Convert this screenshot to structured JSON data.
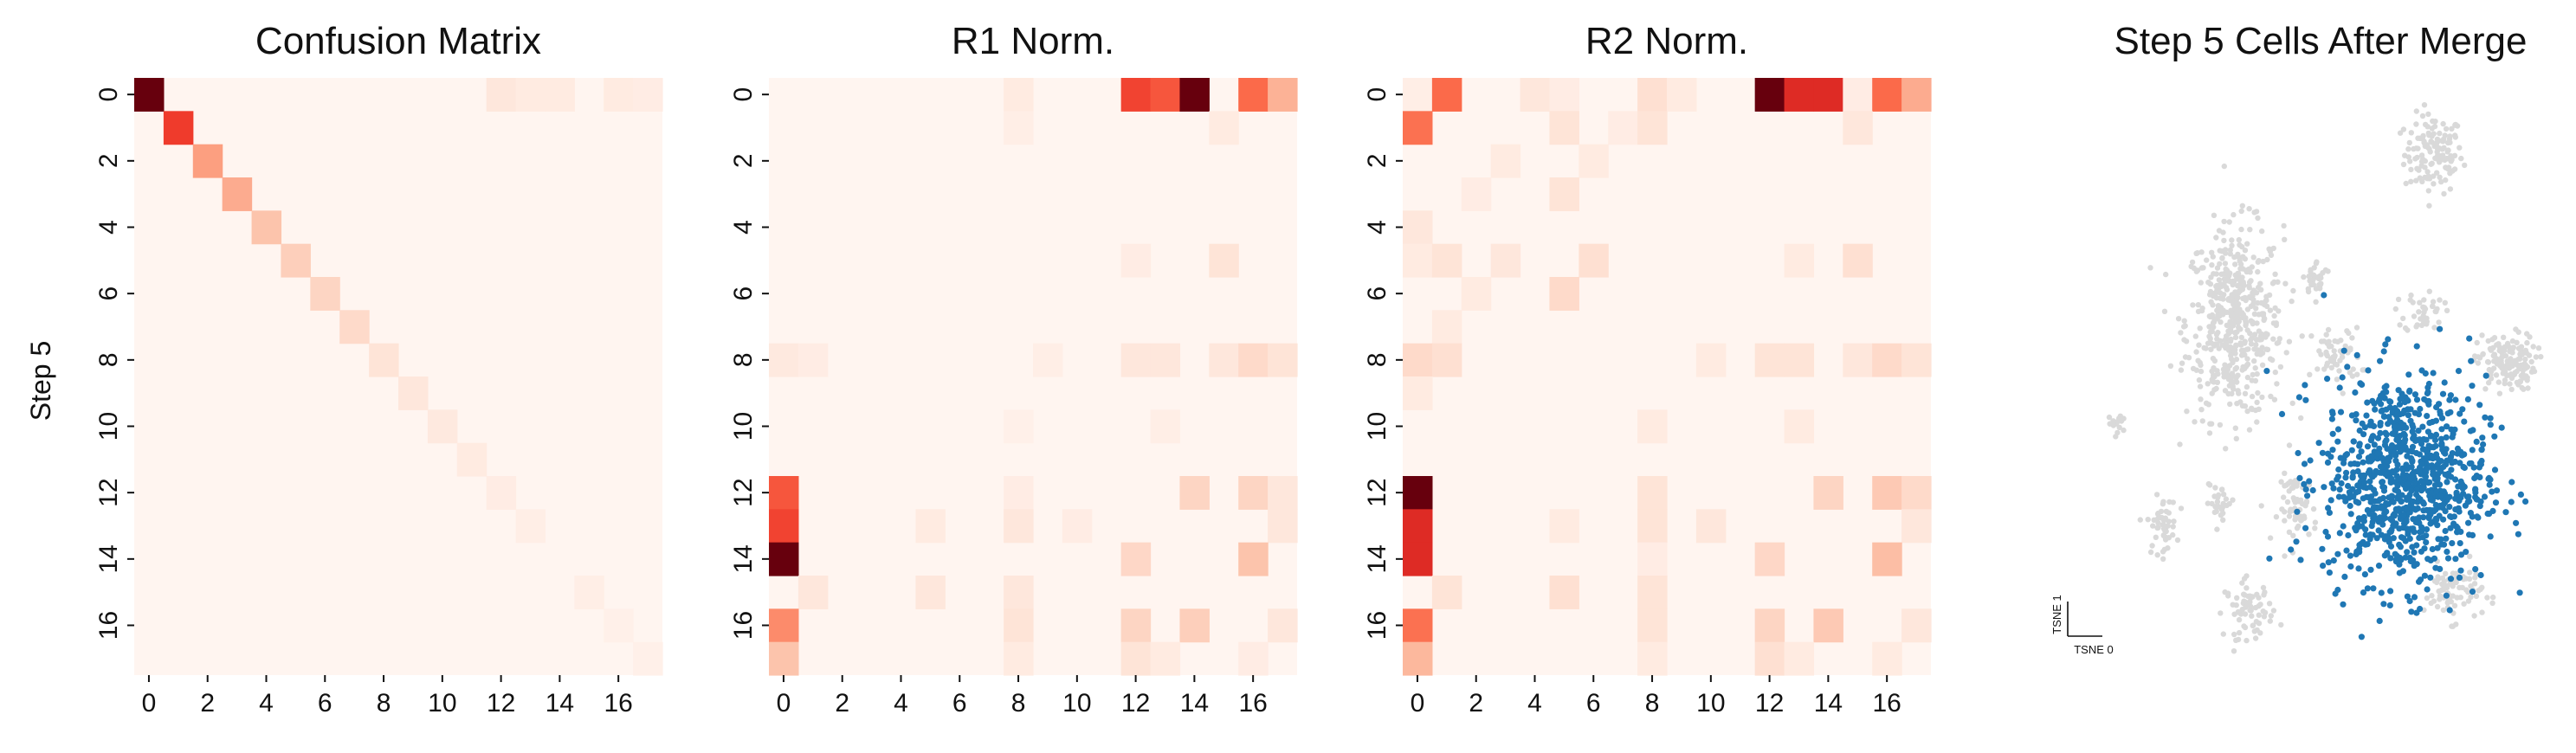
{
  "figure": {
    "y_axis_label": "Step 5"
  },
  "chart_data": [
    {
      "type": "heatmap",
      "title": "Confusion Matrix",
      "rows": 18,
      "cols": 18,
      "x_tick_labels": [
        "0",
        "2",
        "4",
        "6",
        "8",
        "10",
        "12",
        "14",
        "16"
      ],
      "y_tick_labels": [
        "0",
        "2",
        "4",
        "6",
        "8",
        "10",
        "12",
        "14",
        "16"
      ],
      "ylabel": "Step 5",
      "colormap": "Reds",
      "vmax": 1.0,
      "cells": [
        [
          0,
          0,
          1.0
        ],
        [
          1,
          1,
          0.62
        ],
        [
          2,
          2,
          0.34
        ],
        [
          3,
          3,
          0.3
        ],
        [
          4,
          4,
          0.22
        ],
        [
          5,
          5,
          0.18
        ],
        [
          6,
          6,
          0.16
        ],
        [
          7,
          7,
          0.14
        ],
        [
          8,
          8,
          0.1
        ],
        [
          9,
          9,
          0.08
        ],
        [
          10,
          10,
          0.07
        ],
        [
          11,
          11,
          0.06
        ],
        [
          12,
          12,
          0.05
        ],
        [
          13,
          13,
          0.04
        ],
        [
          15,
          15,
          0.04
        ],
        [
          16,
          16,
          0.03
        ],
        [
          17,
          17,
          0.03
        ],
        [
          0,
          12,
          0.08
        ],
        [
          0,
          13,
          0.06
        ],
        [
          0,
          14,
          0.06
        ],
        [
          0,
          16,
          0.06
        ],
        [
          0,
          17,
          0.05
        ]
      ]
    },
    {
      "type": "heatmap",
      "title": "R1 Norm.",
      "rows": 18,
      "cols": 18,
      "x_tick_labels": [
        "0",
        "2",
        "4",
        "6",
        "8",
        "10",
        "12",
        "14",
        "16"
      ],
      "y_tick_labels": [
        "0",
        "2",
        "4",
        "6",
        "8",
        "10",
        "12",
        "14",
        "16"
      ],
      "colormap": "Reds",
      "vmax": 1.0,
      "cells": [
        [
          0,
          8,
          0.06
        ],
        [
          0,
          12,
          0.6
        ],
        [
          0,
          13,
          0.55
        ],
        [
          0,
          14,
          1.0
        ],
        [
          0,
          16,
          0.5
        ],
        [
          0,
          17,
          0.28
        ],
        [
          1,
          8,
          0.04
        ],
        [
          1,
          15,
          0.06
        ],
        [
          5,
          12,
          0.05
        ],
        [
          5,
          15,
          0.1
        ],
        [
          8,
          0,
          0.07
        ],
        [
          8,
          1,
          0.05
        ],
        [
          8,
          9,
          0.04
        ],
        [
          8,
          12,
          0.08
        ],
        [
          8,
          13,
          0.08
        ],
        [
          8,
          15,
          0.08
        ],
        [
          8,
          16,
          0.14
        ],
        [
          8,
          17,
          0.1
        ],
        [
          10,
          8,
          0.03
        ],
        [
          10,
          13,
          0.04
        ],
        [
          12,
          0,
          0.55
        ],
        [
          12,
          8,
          0.05
        ],
        [
          12,
          14,
          0.16
        ],
        [
          12,
          16,
          0.16
        ],
        [
          12,
          17,
          0.08
        ],
        [
          13,
          0,
          0.6
        ],
        [
          13,
          5,
          0.06
        ],
        [
          13,
          8,
          0.08
        ],
        [
          13,
          10,
          0.05
        ],
        [
          13,
          17,
          0.08
        ],
        [
          14,
          0,
          1.0
        ],
        [
          14,
          12,
          0.15
        ],
        [
          14,
          16,
          0.22
        ],
        [
          15,
          1,
          0.08
        ],
        [
          15,
          5,
          0.08
        ],
        [
          15,
          8,
          0.08
        ],
        [
          16,
          0,
          0.4
        ],
        [
          16,
          8,
          0.1
        ],
        [
          16,
          12,
          0.16
        ],
        [
          16,
          14,
          0.18
        ],
        [
          16,
          17,
          0.08
        ],
        [
          17,
          0,
          0.22
        ],
        [
          17,
          8,
          0.06
        ],
        [
          17,
          12,
          0.1
        ],
        [
          17,
          13,
          0.06
        ],
        [
          17,
          16,
          0.05
        ]
      ]
    },
    {
      "type": "heatmap",
      "title": "R2 Norm.",
      "rows": 18,
      "cols": 18,
      "x_tick_labels": [
        "0",
        "2",
        "4",
        "6",
        "8",
        "10",
        "12",
        "14",
        "16"
      ],
      "y_tick_labels": [
        "0",
        "2",
        "4",
        "6",
        "8",
        "10",
        "12",
        "14",
        "16"
      ],
      "colormap": "Reds",
      "vmax": 1.0,
      "cells": [
        [
          0,
          0,
          0.04
        ],
        [
          0,
          1,
          0.5
        ],
        [
          0,
          4,
          0.08
        ],
        [
          0,
          5,
          0.05
        ],
        [
          0,
          8,
          0.12
        ],
        [
          0,
          9,
          0.06
        ],
        [
          0,
          12,
          1.0
        ],
        [
          0,
          13,
          0.68
        ],
        [
          0,
          14,
          0.68
        ],
        [
          0,
          15,
          0.05
        ],
        [
          0,
          16,
          0.5
        ],
        [
          0,
          17,
          0.3
        ],
        [
          1,
          0,
          0.48
        ],
        [
          1,
          5,
          0.1
        ],
        [
          1,
          7,
          0.05
        ],
        [
          1,
          8,
          0.1
        ],
        [
          1,
          15,
          0.08
        ],
        [
          2,
          3,
          0.06
        ],
        [
          2,
          6,
          0.06
        ],
        [
          3,
          2,
          0.05
        ],
        [
          3,
          5,
          0.1
        ],
        [
          4,
          0,
          0.08
        ],
        [
          5,
          0,
          0.06
        ],
        [
          5,
          1,
          0.1
        ],
        [
          5,
          3,
          0.08
        ],
        [
          5,
          6,
          0.12
        ],
        [
          5,
          13,
          0.06
        ],
        [
          5,
          15,
          0.12
        ],
        [
          6,
          2,
          0.06
        ],
        [
          6,
          5,
          0.14
        ],
        [
          7,
          1,
          0.06
        ],
        [
          8,
          0,
          0.14
        ],
        [
          8,
          1,
          0.12
        ],
        [
          8,
          10,
          0.06
        ],
        [
          8,
          12,
          0.1
        ],
        [
          8,
          13,
          0.1
        ],
        [
          8,
          15,
          0.08
        ],
        [
          8,
          16,
          0.14
        ],
        [
          8,
          17,
          0.1
        ],
        [
          9,
          0,
          0.06
        ],
        [
          10,
          8,
          0.06
        ],
        [
          10,
          13,
          0.06
        ],
        [
          12,
          0,
          1.0
        ],
        [
          12,
          8,
          0.1
        ],
        [
          12,
          14,
          0.16
        ],
        [
          12,
          16,
          0.2
        ],
        [
          12,
          17,
          0.14
        ],
        [
          13,
          0,
          0.68
        ],
        [
          13,
          5,
          0.06
        ],
        [
          13,
          8,
          0.1
        ],
        [
          13,
          10,
          0.08
        ],
        [
          13,
          17,
          0.08
        ],
        [
          14,
          0,
          0.68
        ],
        [
          14,
          8,
          0.05
        ],
        [
          14,
          12,
          0.15
        ],
        [
          14,
          16,
          0.24
        ],
        [
          15,
          1,
          0.1
        ],
        [
          15,
          5,
          0.12
        ],
        [
          15,
          8,
          0.1
        ],
        [
          16,
          0,
          0.48
        ],
        [
          16,
          8,
          0.1
        ],
        [
          16,
          12,
          0.16
        ],
        [
          16,
          14,
          0.2
        ],
        [
          16,
          17,
          0.08
        ],
        [
          17,
          0,
          0.26
        ],
        [
          17,
          8,
          0.06
        ],
        [
          17,
          12,
          0.12
        ],
        [
          17,
          13,
          0.06
        ],
        [
          17,
          16,
          0.06
        ]
      ]
    },
    {
      "type": "scatter",
      "title": "Step 5 Cells After Merge",
      "xlabel": "TSNE 0",
      "ylabel": "TSNE 1",
      "colors": {
        "background": "#d9d9d9",
        "highlight": "#1f77b4"
      },
      "background_clusters": [
        {
          "cx": 0.76,
          "cy": 0.88,
          "rx": 0.06,
          "ry": 0.07,
          "n": 130
        },
        {
          "cx": 0.35,
          "cy": 0.58,
          "rx": 0.1,
          "ry": 0.17,
          "n": 520
        },
        {
          "cx": 0.52,
          "cy": 0.66,
          "rx": 0.03,
          "ry": 0.03,
          "n": 30
        },
        {
          "cx": 0.74,
          "cy": 0.6,
          "rx": 0.04,
          "ry": 0.04,
          "n": 40
        },
        {
          "cx": 0.91,
          "cy": 0.51,
          "rx": 0.06,
          "ry": 0.05,
          "n": 150
        },
        {
          "cx": 0.56,
          "cy": 0.52,
          "rx": 0.05,
          "ry": 0.05,
          "n": 60
        },
        {
          "cx": 0.11,
          "cy": 0.4,
          "rx": 0.02,
          "ry": 0.02,
          "n": 14
        },
        {
          "cx": 0.2,
          "cy": 0.22,
          "rx": 0.03,
          "ry": 0.05,
          "n": 50
        },
        {
          "cx": 0.32,
          "cy": 0.26,
          "rx": 0.03,
          "ry": 0.03,
          "n": 25
        },
        {
          "cx": 0.48,
          "cy": 0.25,
          "rx": 0.04,
          "ry": 0.06,
          "n": 60
        },
        {
          "cx": 0.38,
          "cy": 0.07,
          "rx": 0.05,
          "ry": 0.05,
          "n": 70
        },
        {
          "cx": 0.8,
          "cy": 0.1,
          "rx": 0.06,
          "ry": 0.05,
          "n": 80
        }
      ],
      "highlight_cluster": {
        "cx": 0.7,
        "cy": 0.3,
        "rx": 0.2,
        "ry": 0.22,
        "n": 900
      }
    }
  ]
}
